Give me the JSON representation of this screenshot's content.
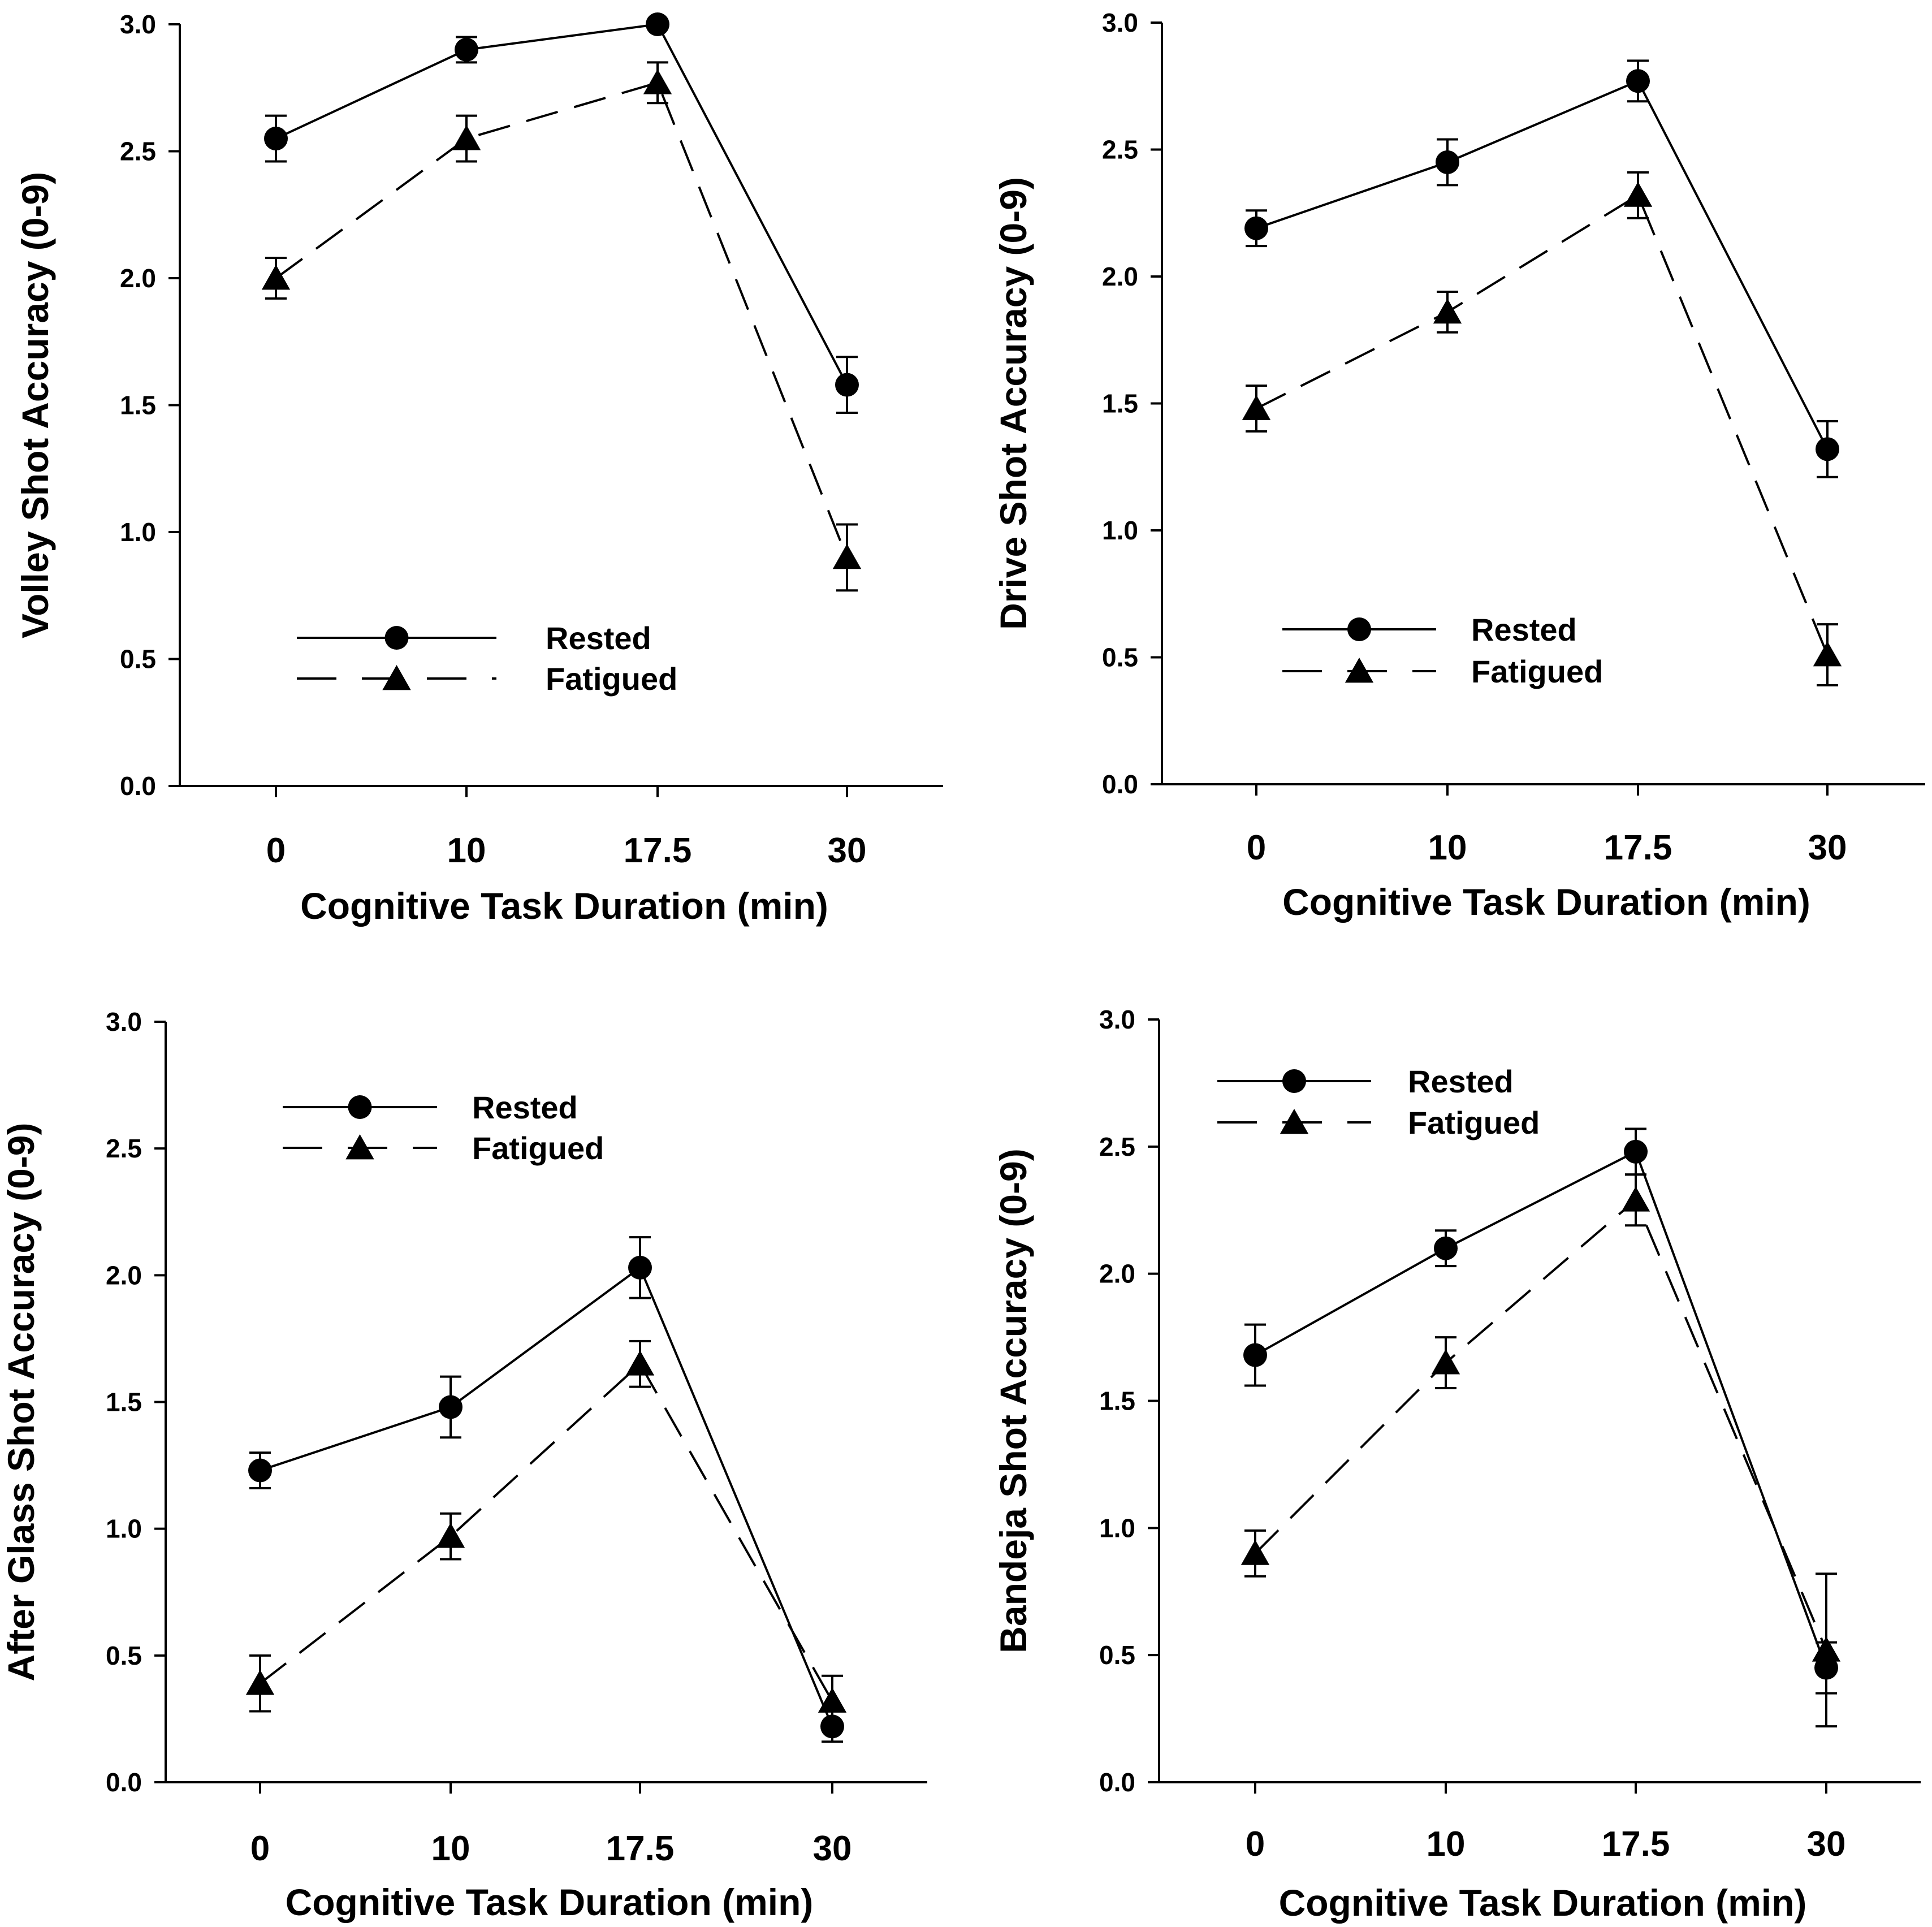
{
  "chart_data": [
    {
      "type": "line",
      "id": "volley",
      "ylabel": "Volley Shot Accuracy (0-9)",
      "xlabel": "Cognitive Task Duration (min)",
      "categories": [
        "0",
        "10",
        "17.5",
        "30"
      ],
      "ylim": [
        0,
        3
      ],
      "yticks": [
        "0.0",
        "0.5",
        "1.0",
        "1.5",
        "2.0",
        "2.5",
        "3.0"
      ],
      "legend_position": "lower-left",
      "series": [
        {
          "name": "Rested",
          "marker": "circle",
          "line": "solid",
          "values": [
            2.55,
            2.9,
            3.0,
            1.58
          ],
          "err": [
            0.09,
            0.05,
            0.0,
            0.11
          ]
        },
        {
          "name": "Fatigued",
          "marker": "triangle",
          "line": "dashed",
          "values": [
            2.0,
            2.55,
            2.77,
            0.9
          ],
          "err": [
            0.08,
            0.09,
            0.08,
            0.13
          ]
        }
      ]
    },
    {
      "type": "line",
      "id": "drive",
      "ylabel": "Drive Shot Accuracy (0-9)",
      "xlabel": "Cognitive Task Duration (min)",
      "categories": [
        "0",
        "10",
        "17.5",
        "30"
      ],
      "ylim": [
        0,
        3
      ],
      "yticks": [
        "0.0",
        "0.5",
        "1.0",
        "1.5",
        "2.0",
        "2.5",
        "3.0"
      ],
      "legend_position": "lower-left",
      "series": [
        {
          "name": "Rested",
          "marker": "circle",
          "line": "solid",
          "values": [
            2.19,
            2.45,
            2.77,
            1.32
          ],
          "err": [
            0.07,
            0.09,
            0.08,
            0.11
          ]
        },
        {
          "name": "Fatigued",
          "marker": "triangle",
          "line": "dashed",
          "values": [
            1.48,
            1.86,
            2.32,
            0.51
          ],
          "err": [
            0.09,
            0.08,
            0.09,
            0.12
          ]
        }
      ]
    },
    {
      "type": "line",
      "id": "afterglass",
      "ylabel": "After Glass Shot Accuracy (0-9)",
      "xlabel": "Cognitive Task Duration (min)",
      "categories": [
        "0",
        "10",
        "17.5",
        "30"
      ],
      "ylim": [
        0,
        3
      ],
      "yticks": [
        "0.0",
        "0.5",
        "1.0",
        "1.5",
        "2.0",
        "2.5",
        "3.0"
      ],
      "legend_position": "upper-left",
      "series": [
        {
          "name": "Rested",
          "marker": "circle",
          "line": "solid",
          "values": [
            1.23,
            1.48,
            2.03,
            0.22
          ],
          "err": [
            0.07,
            0.12,
            0.12,
            0.06
          ]
        },
        {
          "name": "Fatigued",
          "marker": "triangle",
          "line": "dashed",
          "values": [
            0.39,
            0.97,
            1.65,
            0.32
          ],
          "err": [
            0.11,
            0.09,
            0.09,
            0.1
          ]
        }
      ]
    },
    {
      "type": "line",
      "id": "bandeja",
      "ylabel": "Bandeja Shot Accuracy (0-9)",
      "xlabel": "Cognitive Task Duration (min)",
      "categories": [
        "0",
        "10",
        "17.5",
        "30"
      ],
      "ylim": [
        0,
        3
      ],
      "yticks": [
        "0.0",
        "0.5",
        "1.0",
        "1.5",
        "2.0",
        "2.5",
        "3.0"
      ],
      "legend_position": "upper-left",
      "series": [
        {
          "name": "Rested",
          "marker": "circle",
          "line": "solid",
          "values": [
            1.68,
            2.1,
            2.48,
            0.45
          ],
          "err": [
            0.12,
            0.07,
            0.09,
            0.1
          ]
        },
        {
          "name": "Fatigued",
          "marker": "triangle",
          "line": "dashed",
          "values": [
            0.9,
            1.65,
            2.29,
            0.52
          ],
          "err": [
            0.09,
            0.1,
            0.1,
            0.3
          ]
        }
      ]
    }
  ]
}
